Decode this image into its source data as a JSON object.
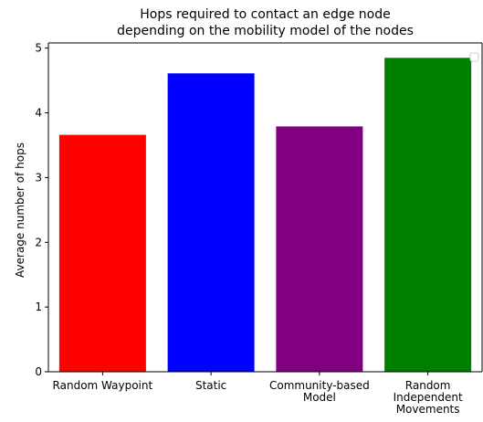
{
  "chart_data": {
    "type": "bar",
    "title": [
      "Hops required to contact an edge node",
      "depending on the mobility model of the nodes"
    ],
    "xlabel": "",
    "ylabel": "Average number of hops",
    "categories": [
      [
        "Random Waypoint"
      ],
      [
        "Static"
      ],
      [
        "Community-based",
        "Model"
      ],
      [
        "Random",
        "Independent",
        "Movements"
      ]
    ],
    "values": [
      3.66,
      4.61,
      3.79,
      4.85
    ],
    "colors": [
      "#ff0000",
      "#0000ff",
      "#800080",
      "#008000"
    ],
    "ylim": [
      0,
      5.08
    ],
    "yticks": [
      0,
      1,
      2,
      3,
      4,
      5
    ],
    "grid": false,
    "legend": "top-right",
    "legend_entries": []
  }
}
